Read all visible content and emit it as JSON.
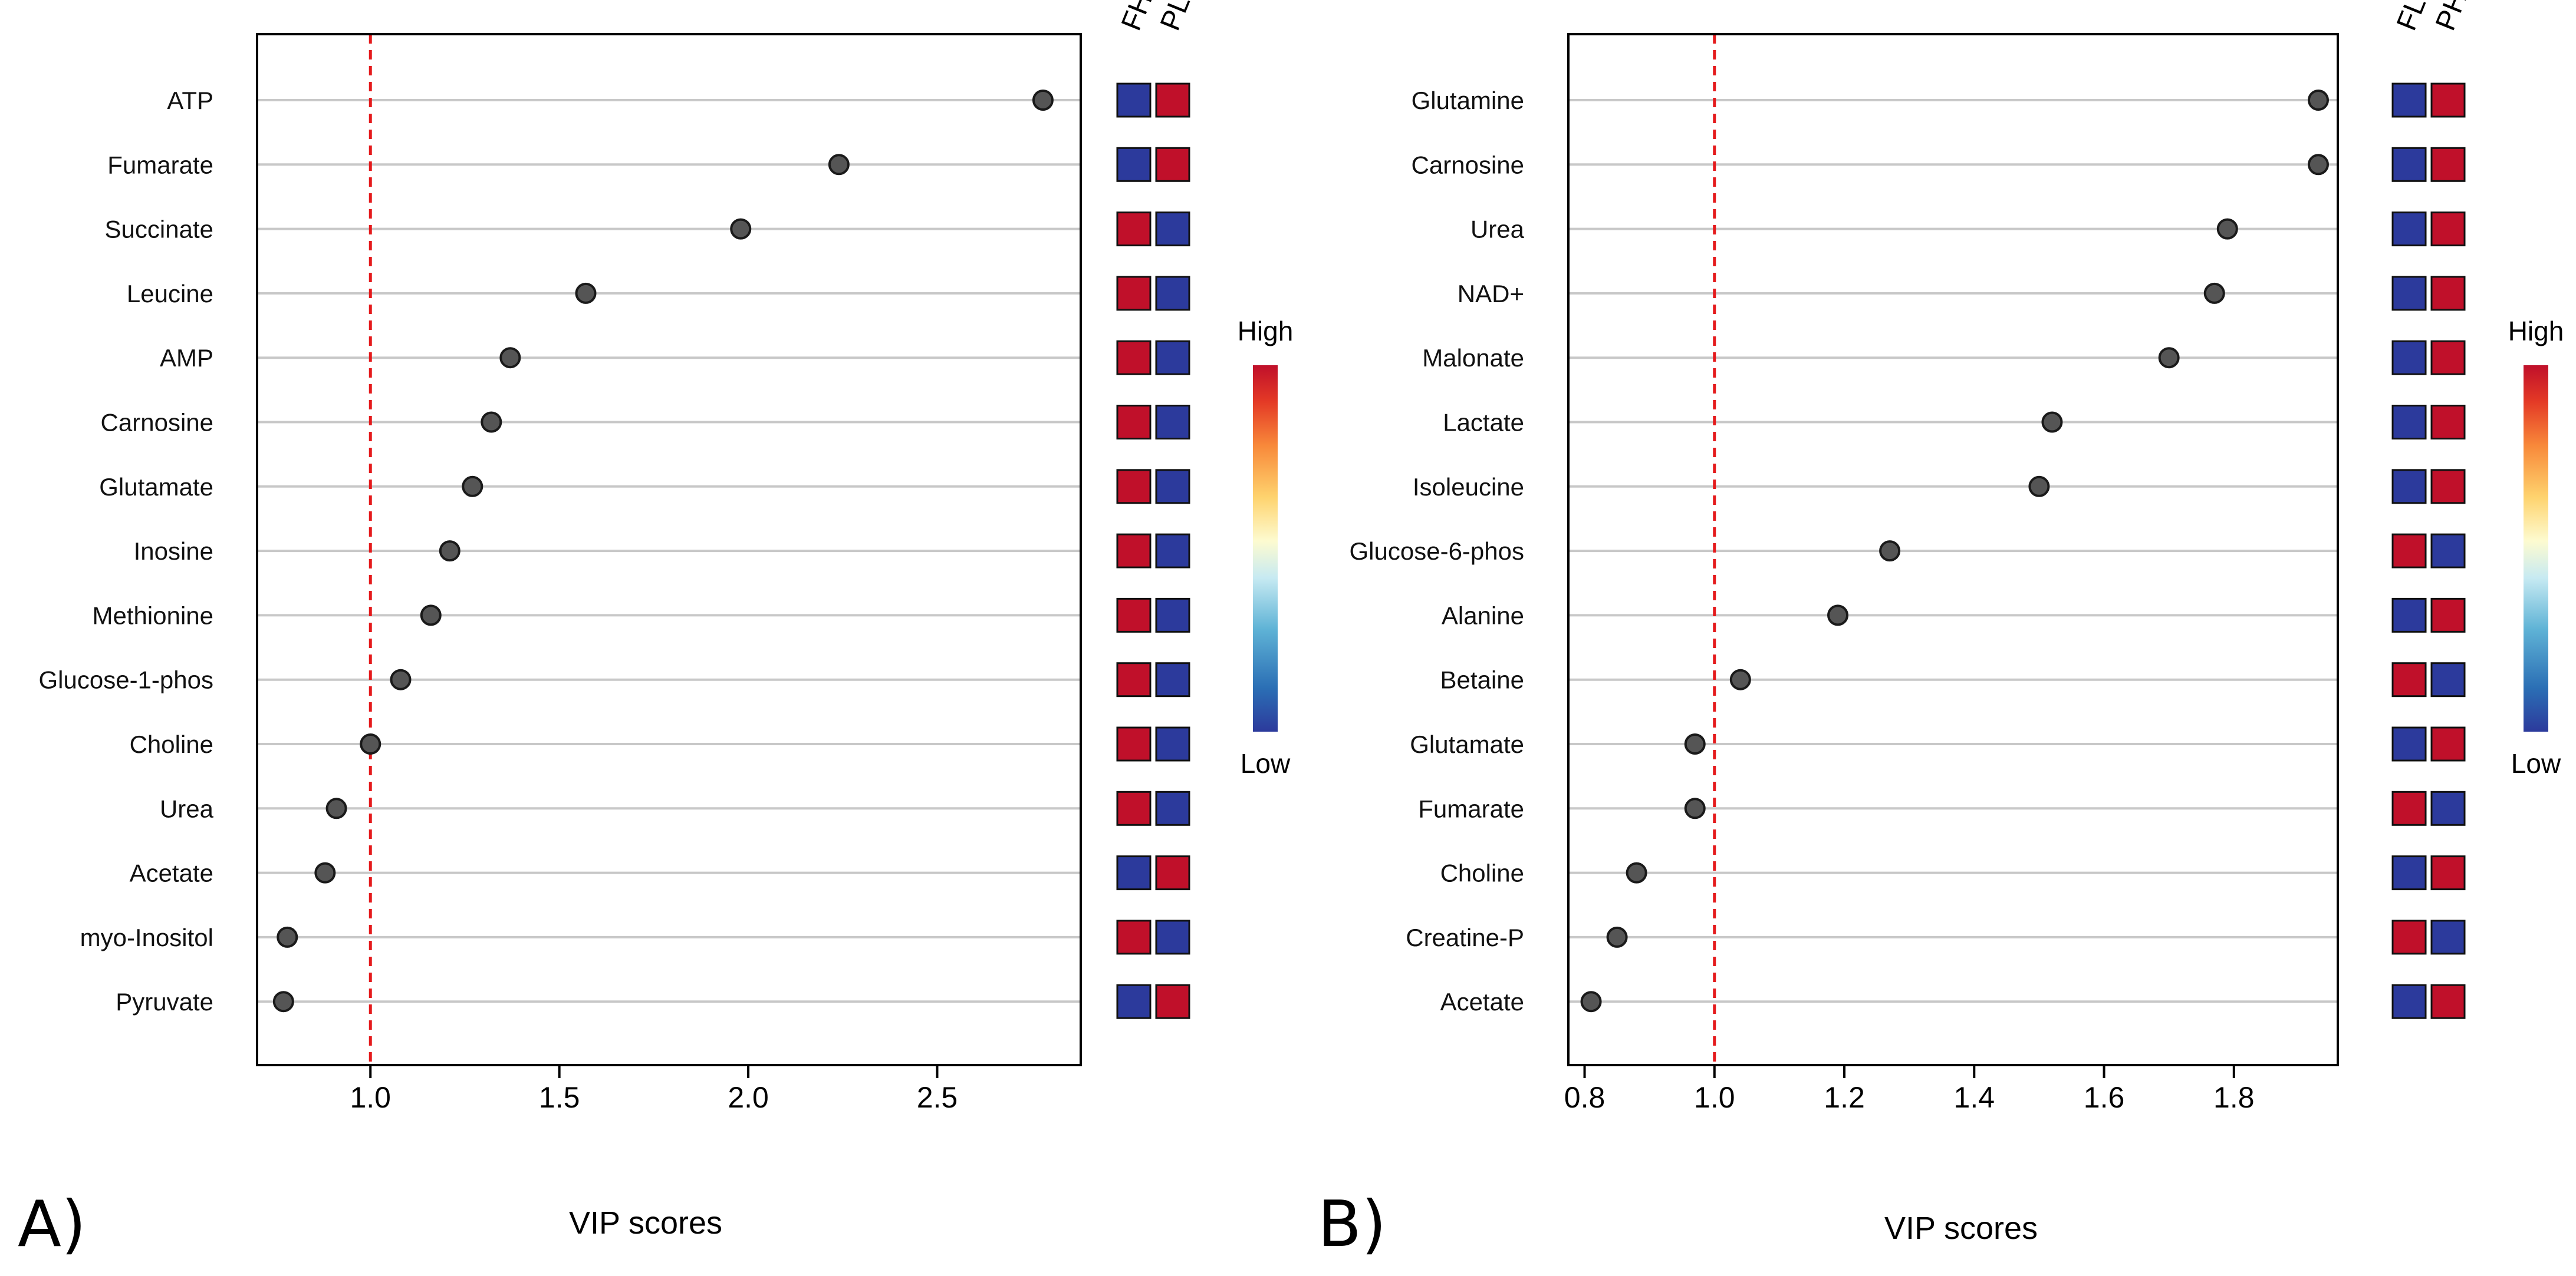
{
  "colors": {
    "high": "#c0102a",
    "low": "#2c3a9c",
    "dot": "#555555",
    "threshold": "#e41a1c",
    "gridline": "#c8c8c8",
    "frame": "#000000"
  },
  "legend_labels": {
    "high": "High",
    "low": "Low"
  },
  "chart_data": [
    {
      "id": "A",
      "type": "scatter",
      "panel_label": "A)",
      "xlabel": "VIP scores",
      "xlim": [
        0.7,
        2.88
      ],
      "xticks": [
        1.0,
        1.5,
        2.0,
        2.5
      ],
      "xtick_labels": [
        "1.0",
        "1.5",
        "2.0",
        "2.5"
      ],
      "threshold": 1.0,
      "heat_columns": [
        "FH",
        "PL"
      ],
      "metabolites": [
        "ATP",
        "Fumarate",
        "Succinate",
        "Leucine",
        "AMP",
        "Carnosine",
        "Glutamate",
        "Inosine",
        "Methionine",
        "Glucose-1-phos",
        "Choline",
        "Urea",
        "Acetate",
        "myo-Inositol",
        "Pyruvate"
      ],
      "vip": [
        2.78,
        2.24,
        1.98,
        1.57,
        1.37,
        1.32,
        1.27,
        1.21,
        1.16,
        1.08,
        1.0,
        0.91,
        0.88,
        0.78,
        0.77
      ],
      "heat": [
        [
          "low",
          "high"
        ],
        [
          "low",
          "high"
        ],
        [
          "high",
          "low"
        ],
        [
          "high",
          "low"
        ],
        [
          "high",
          "low"
        ],
        [
          "high",
          "low"
        ],
        [
          "high",
          "low"
        ],
        [
          "high",
          "low"
        ],
        [
          "high",
          "low"
        ],
        [
          "high",
          "low"
        ],
        [
          "high",
          "low"
        ],
        [
          "high",
          "low"
        ],
        [
          "low",
          "high"
        ],
        [
          "high",
          "low"
        ],
        [
          "low",
          "high"
        ]
      ]
    },
    {
      "id": "B",
      "type": "scatter",
      "panel_label": "B)",
      "xlabel": "VIP scores",
      "xlim": [
        0.775,
        1.96
      ],
      "xticks": [
        0.8,
        1.0,
        1.2,
        1.4,
        1.6,
        1.8
      ],
      "xtick_labels": [
        "0.8",
        "1.0",
        "1.2",
        "1.4",
        "1.6",
        "1.8"
      ],
      "threshold": 1.0,
      "heat_columns": [
        "FL",
        "PH"
      ],
      "metabolites": [
        "Glutamine",
        "Carnosine",
        "Urea",
        "NAD+",
        "Malonate",
        "Lactate",
        "Isoleucine",
        "Glucose-6-phos",
        "Alanine",
        "Betaine",
        "Glutamate",
        "Fumarate",
        "Choline",
        "Creatine-P",
        "Acetate"
      ],
      "vip": [
        1.93,
        1.93,
        1.79,
        1.77,
        1.7,
        1.52,
        1.5,
        1.27,
        1.19,
        1.04,
        0.97,
        0.97,
        0.88,
        0.85,
        0.81
      ],
      "heat": [
        [
          "low",
          "high"
        ],
        [
          "low",
          "high"
        ],
        [
          "low",
          "high"
        ],
        [
          "low",
          "high"
        ],
        [
          "low",
          "high"
        ],
        [
          "low",
          "high"
        ],
        [
          "low",
          "high"
        ],
        [
          "high",
          "low"
        ],
        [
          "low",
          "high"
        ],
        [
          "high",
          "low"
        ],
        [
          "low",
          "high"
        ],
        [
          "high",
          "low"
        ],
        [
          "low",
          "high"
        ],
        [
          "high",
          "low"
        ],
        [
          "low",
          "high"
        ]
      ]
    }
  ]
}
